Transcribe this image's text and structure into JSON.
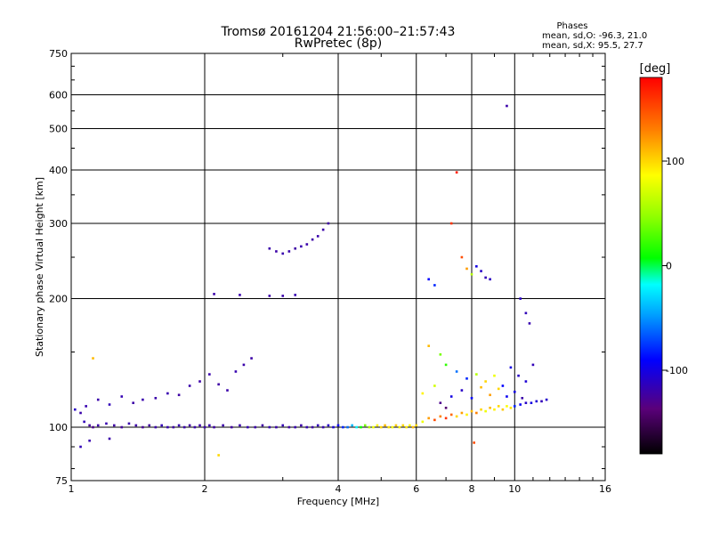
{
  "chart_data": {
    "type": "scatter",
    "title": "Tromsø 20161204 21:56:00–21:57:43",
    "subtitle": "RwPretec (8p)",
    "xlabel": "Frequency [MHz]",
    "ylabel": "Stationary phase Virtual Height [km]",
    "x_scale": "log",
    "y_scale": "log",
    "xlim": [
      1,
      16
    ],
    "ylim": [
      75,
      750
    ],
    "x_ticks": [
      1,
      2,
      4,
      6,
      8,
      10,
      16
    ],
    "y_ticks": [
      75,
      100,
      200,
      300,
      400,
      500,
      600,
      750
    ],
    "grid": true,
    "phase_legend": {
      "title": "Phases",
      "line_o": "mean, sd,O: -96.3, 21.0",
      "line_x": "mean, sd,X:  95.5, 27.7"
    },
    "colorbar": {
      "label": "[deg]",
      "range": [
        -180,
        180
      ],
      "ticks": [
        100,
        0,
        -100
      ],
      "tick_labels": [
        "100",
        "0",
        "-100"
      ]
    },
    "series": [
      {
        "points": [
          [
            1.02,
            110,
            -110
          ],
          [
            1.05,
            108,
            -120
          ],
          [
            1.07,
            103,
            -115
          ],
          [
            1.1,
            101,
            -125
          ],
          [
            1.12,
            100,
            -130
          ],
          [
            1.15,
            101,
            -120
          ],
          [
            1.2,
            102,
            -118
          ],
          [
            1.25,
            101,
            -122
          ],
          [
            1.3,
            100,
            -125
          ],
          [
            1.35,
            102,
            -119
          ],
          [
            1.4,
            101,
            -121
          ],
          [
            1.45,
            100,
            -127
          ],
          [
            1.5,
            101,
            -124
          ],
          [
            1.55,
            100,
            -120
          ],
          [
            1.6,
            101,
            -115
          ],
          [
            1.65,
            100,
            -118
          ],
          [
            1.7,
            100,
            -122
          ],
          [
            1.75,
            101,
            -117
          ],
          [
            1.8,
            100,
            -120
          ],
          [
            1.85,
            101,
            -123
          ],
          [
            1.9,
            100,
            -119
          ],
          [
            1.95,
            101,
            -121
          ],
          [
            2.0,
            100,
            -120
          ],
          [
            2.05,
            101,
            -118
          ],
          [
            2.1,
            100,
            -122
          ],
          [
            2.2,
            101,
            -120
          ],
          [
            2.3,
            100,
            -124
          ],
          [
            2.4,
            101,
            -119
          ],
          [
            2.5,
            100,
            -117
          ],
          [
            2.6,
            100,
            -121
          ],
          [
            2.7,
            101,
            -122
          ],
          [
            2.8,
            100,
            -118
          ],
          [
            2.9,
            100,
            -120
          ],
          [
            3.0,
            101,
            -116
          ],
          [
            3.1,
            100,
            -123
          ],
          [
            3.2,
            100,
            -119
          ],
          [
            3.3,
            101,
            -120
          ],
          [
            3.4,
            100,
            -117
          ],
          [
            3.5,
            100,
            -121
          ],
          [
            3.6,
            101,
            -115
          ],
          [
            3.7,
            100,
            -118
          ],
          [
            3.8,
            101,
            -110
          ],
          [
            3.9,
            100,
            -105
          ],
          [
            4.0,
            101,
            -95
          ],
          [
            4.1,
            100,
            -80
          ],
          [
            4.2,
            100,
            -60
          ],
          [
            4.3,
            101,
            -40
          ],
          [
            4.4,
            100,
            -20
          ],
          [
            4.5,
            100,
            10
          ],
          [
            4.6,
            101,
            40
          ],
          [
            4.7,
            100,
            60
          ],
          [
            4.8,
            100,
            80
          ],
          [
            4.9,
            101,
            90
          ],
          [
            5.0,
            100,
            100
          ],
          [
            5.1,
            101,
            110
          ],
          [
            5.2,
            100,
            95
          ],
          [
            5.3,
            100,
            85
          ],
          [
            5.4,
            101,
            105
          ],
          [
            5.5,
            100,
            90
          ],
          [
            5.6,
            101,
            100
          ],
          [
            5.7,
            100,
            95
          ],
          [
            5.8,
            101,
            88
          ],
          [
            5.9,
            100,
            110
          ],
          [
            6.0,
            101,
            100
          ],
          [
            6.2,
            103,
            80
          ],
          [
            6.4,
            105,
            120
          ],
          [
            6.6,
            104,
            150
          ],
          [
            6.8,
            106,
            130
          ],
          [
            7.0,
            105,
            160
          ],
          [
            7.2,
            107,
            140
          ],
          [
            7.4,
            106,
            100
          ],
          [
            7.6,
            108,
            120
          ],
          [
            7.8,
            107,
            90
          ],
          [
            8.0,
            109,
            110
          ],
          [
            8.2,
            108,
            130
          ],
          [
            8.4,
            110,
            100
          ],
          [
            8.6,
            109,
            80
          ],
          [
            8.8,
            111,
            110
          ],
          [
            9.0,
            110,
            90
          ],
          [
            9.2,
            112,
            100
          ],
          [
            9.4,
            110,
            105
          ],
          [
            9.6,
            112,
            85
          ],
          [
            9.8,
            111,
            95
          ],
          [
            10.0,
            112,
            -80
          ],
          [
            10.3,
            113,
            -95
          ],
          [
            10.6,
            114,
            -110
          ],
          [
            10.9,
            114,
            -100
          ],
          [
            11.2,
            115,
            -105
          ],
          [
            11.5,
            115,
            -115
          ],
          [
            11.8,
            116,
            -108
          ],
          [
            1.08,
            112,
            -118
          ],
          [
            1.15,
            116,
            -120
          ],
          [
            1.22,
            113,
            -115
          ],
          [
            1.3,
            118,
            -117
          ],
          [
            1.38,
            114,
            -121
          ],
          [
            1.45,
            116,
            -119
          ],
          [
            1.55,
            117,
            -120
          ],
          [
            1.65,
            120,
            -118
          ],
          [
            1.75,
            119,
            -122
          ],
          [
            1.85,
            125,
            -120
          ],
          [
            1.95,
            128,
            -121
          ],
          [
            2.05,
            133,
            -119
          ],
          [
            2.15,
            126,
            -122
          ],
          [
            2.25,
            122,
            -120
          ],
          [
            2.35,
            135,
            -118
          ],
          [
            2.45,
            140,
            -120
          ],
          [
            2.55,
            145,
            -121
          ],
          [
            1.22,
            94,
            -120
          ],
          [
            1.05,
            90,
            -115
          ],
          [
            1.1,
            93,
            -118
          ],
          [
            2.8,
            262,
            -120
          ],
          [
            2.9,
            258,
            -121
          ],
          [
            3.0,
            255,
            -119
          ],
          [
            3.1,
            258,
            -120
          ],
          [
            3.2,
            262,
            -122
          ],
          [
            3.3,
            265,
            -118
          ],
          [
            3.4,
            268,
            -120
          ],
          [
            3.5,
            275,
            -121
          ],
          [
            3.6,
            280,
            -119
          ],
          [
            3.7,
            290,
            -120
          ],
          [
            3.8,
            300,
            -122
          ],
          [
            2.1,
            205,
            -120
          ],
          [
            2.4,
            204,
            -119
          ],
          [
            2.8,
            203,
            -121
          ],
          [
            3.0,
            203,
            -120
          ],
          [
            3.2,
            204,
            -118
          ],
          [
            6.4,
            222,
            -90
          ],
          [
            6.6,
            215,
            -80
          ],
          [
            7.2,
            300,
            160
          ],
          [
            7.4,
            395,
            170
          ],
          [
            7.6,
            250,
            150
          ],
          [
            7.8,
            235,
            120
          ],
          [
            8.0,
            228,
            60
          ],
          [
            8.2,
            238,
            -100
          ],
          [
            8.4,
            232,
            -110
          ],
          [
            8.6,
            224,
            -115
          ],
          [
            8.8,
            222,
            -112
          ],
          [
            9.6,
            565,
            -120
          ],
          [
            10.3,
            200,
            -110
          ],
          [
            10.6,
            185,
            -115
          ],
          [
            10.8,
            175,
            -118
          ],
          [
            6.4,
            155,
            110
          ],
          [
            6.8,
            148,
            40
          ],
          [
            7.0,
            140,
            20
          ],
          [
            7.4,
            135,
            -60
          ],
          [
            7.8,
            130,
            -80
          ],
          [
            8.2,
            133,
            60
          ],
          [
            8.6,
            128,
            100
          ],
          [
            9.0,
            132,
            80
          ],
          [
            9.4,
            125,
            -90
          ],
          [
            9.8,
            138,
            -100
          ],
          [
            10.2,
            132,
            -110
          ],
          [
            10.6,
            128,
            -105
          ],
          [
            11.0,
            140,
            -115
          ],
          [
            6.2,
            120,
            90
          ],
          [
            6.6,
            125,
            70
          ],
          [
            7.2,
            118,
            -100
          ],
          [
            7.6,
            122,
            -110
          ],
          [
            8.0,
            117,
            -90
          ],
          [
            8.4,
            124,
            110
          ],
          [
            8.8,
            119,
            120
          ],
          [
            9.2,
            123,
            100
          ],
          [
            9.6,
            118,
            -95
          ],
          [
            10.0,
            121,
            -100
          ],
          [
            10.4,
            117,
            -120
          ],
          [
            2.15,
            86,
            100
          ],
          [
            1.12,
            145,
            110
          ],
          [
            8.1,
            92,
            150
          ],
          [
            6.8,
            114,
            -130
          ],
          [
            7.0,
            111,
            -140
          ]
        ]
      }
    ]
  }
}
